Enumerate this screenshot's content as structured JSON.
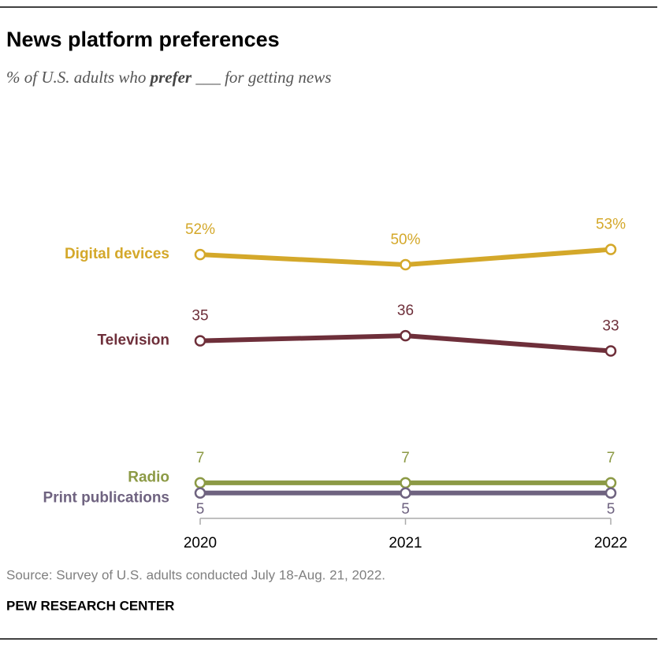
{
  "chart_data": {
    "type": "line",
    "title": "News platform preferences",
    "subtitle": {
      "before": "% of U.S. adults who ",
      "emphasis": "prefer",
      "after": " ___ for getting news"
    },
    "categories": [
      "2020",
      "2021",
      "2022"
    ],
    "series": [
      {
        "name": "Digital devices",
        "color": "#d4a82a",
        "values": [
          52,
          50,
          53
        ],
        "value_labels": [
          "52%",
          "50%",
          "53%"
        ]
      },
      {
        "name": "Television",
        "color": "#6e2f3a",
        "values": [
          35,
          36,
          33
        ]
      },
      {
        "name": "Radio",
        "color": "#8c9a45",
        "values": [
          7,
          7,
          7
        ]
      },
      {
        "name": "Print publications",
        "color": "#6f6380",
        "values": [
          5,
          5,
          5
        ]
      }
    ],
    "ylim": [
      0,
      100
    ],
    "source": "Source: Survey of U.S. adults conducted July 18-Aug. 21, 2022.",
    "credit": "PEW RESEARCH CENTER"
  }
}
